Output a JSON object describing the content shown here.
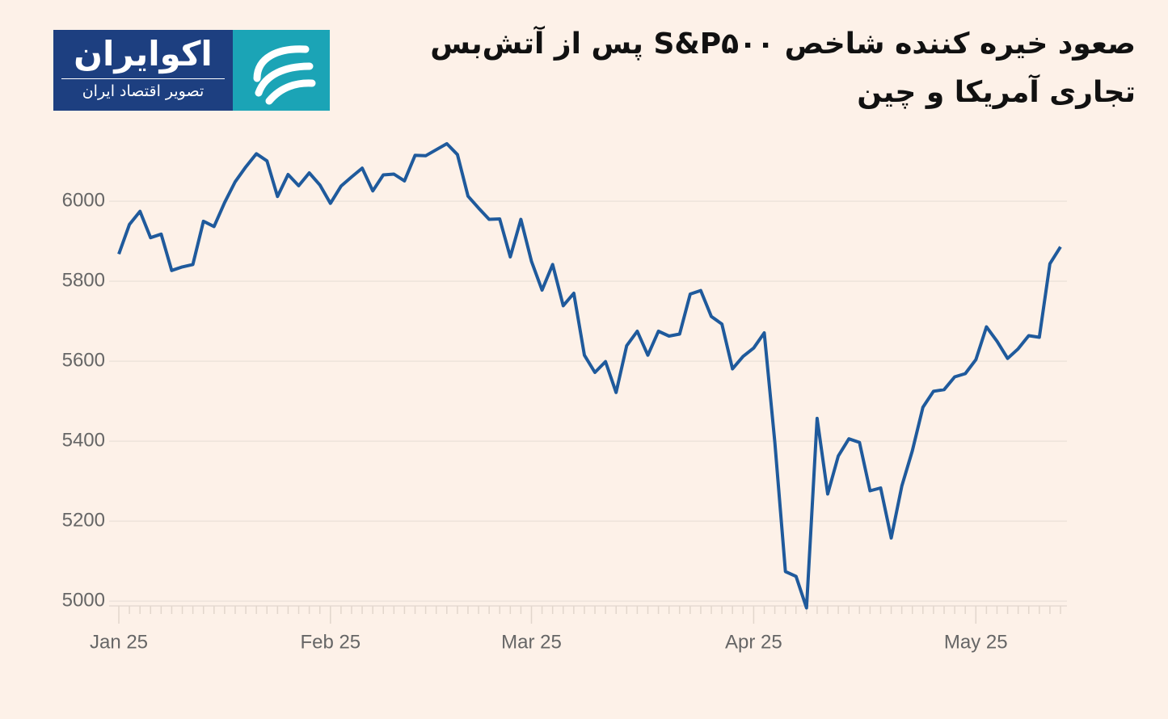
{
  "logo": {
    "name": "اکوایران",
    "tagline": "تصویر اقتصاد ایران"
  },
  "chart_data": {
    "type": "line",
    "title": [
      "صعود خیره کننده شاخص S&P۵۰۰ پس از آتش‌بس",
      "تجاری آمریکا و چین"
    ],
    "categories": [
      "Jan 25",
      null,
      null,
      null,
      null,
      null,
      null,
      null,
      null,
      null,
      null,
      null,
      null,
      null,
      null,
      null,
      null,
      null,
      null,
      null,
      "Feb 25",
      null,
      null,
      null,
      null,
      null,
      null,
      null,
      null,
      null,
      null,
      null,
      null,
      null,
      null,
      null,
      null,
      null,
      null,
      "Mar 25",
      null,
      null,
      null,
      null,
      null,
      null,
      null,
      null,
      null,
      null,
      null,
      null,
      null,
      null,
      null,
      null,
      null,
      null,
      null,
      null,
      "Apr 25",
      null,
      null,
      null,
      null,
      null,
      null,
      null,
      null,
      null,
      null,
      null,
      null,
      null,
      null,
      null,
      null,
      null,
      null,
      null,
      null,
      "May 25",
      null,
      null,
      null,
      null,
      null,
      null,
      null,
      null
    ],
    "series": [
      {
        "name": "S&P 500",
        "color": "#1f5a9c",
        "values": [
          5868,
          5942,
          5975,
          5909,
          5918,
          5827,
          5836,
          5842,
          5950,
          5937,
          5997,
          6049,
          6086,
          6119,
          6101,
          6012,
          6067,
          6039,
          6071,
          6041,
          5995,
          6038,
          6061,
          6083,
          6026,
          6066,
          6068,
          6051,
          6115,
          6114,
          6129,
          6144,
          6117,
          6013,
          5983,
          5955,
          5956,
          5861,
          5955,
          5850,
          5778,
          5842,
          5739,
          5770,
          5615,
          5572,
          5599,
          5522,
          5639,
          5675,
          5615,
          5675,
          5663,
          5668,
          5768,
          5777,
          5712,
          5693,
          5581,
          5612,
          5633,
          5671,
          5397,
          5074,
          5062,
          4983,
          5457,
          5268,
          5363,
          5406,
          5397,
          5276,
          5283,
          5158,
          5288,
          5376,
          5485,
          5525,
          5529,
          5561,
          5569,
          5604,
          5686,
          5650,
          5607,
          5631,
          5664,
          5660,
          5844,
          5886
        ]
      }
    ],
    "ylim": [
      4980,
      6160
    ],
    "yticks": [
      5000,
      5200,
      5400,
      5600,
      5800,
      6000
    ],
    "grid": true
  }
}
